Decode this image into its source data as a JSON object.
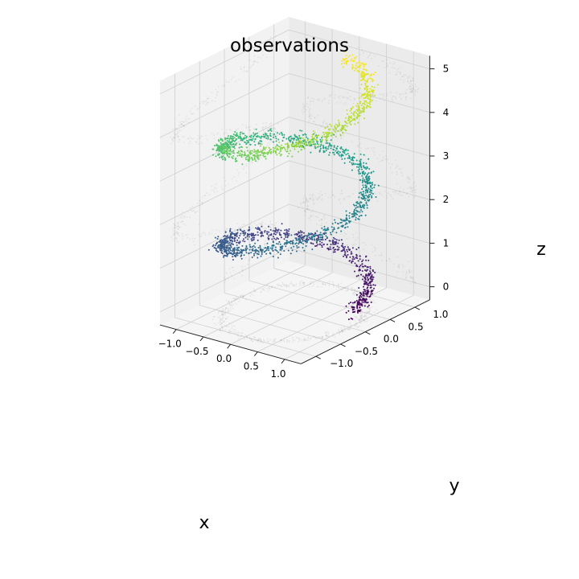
{
  "chart_data": {
    "type": "scatter",
    "projection": "3d",
    "title": "observations",
    "xlabel": "x",
    "ylabel": "y",
    "zlabel": "z",
    "xlim": [
      -1.3,
      1.3
    ],
    "ylim": [
      -1.3,
      1.3
    ],
    "zlim": [
      -0.3,
      5.3
    ],
    "x_ticks": [
      -1.0,
      -0.5,
      0.0,
      0.5,
      1.0
    ],
    "x_tick_labels": [
      "−1.0",
      "−0.5",
      "0.0",
      "0.5",
      "1.0"
    ],
    "y_ticks": [
      -1.0,
      -0.5,
      0.0,
      0.5,
      1.0
    ],
    "y_tick_labels": [
      "−1.0",
      "−0.5",
      "0.0",
      "0.5",
      "1.0"
    ],
    "z_ticks": [
      0,
      1,
      2,
      3,
      4,
      5
    ],
    "z_tick_labels": [
      "0",
      "1",
      "2",
      "3",
      "4",
      "5"
    ],
    "grid": true,
    "colormap": "viridis",
    "series": [
      {
        "points_shown": 2400,
        "color_by": "z",
        "curve": {
          "form": "helix",
          "radius": 1.0,
          "turns": 2.25,
          "z_range": [
            0,
            5
          ],
          "t_range_rad": [
            0,
            14.14
          ]
        },
        "noise_sd": 0.05
      },
      {
        "points_shown": 1600,
        "color": "#777777",
        "opacity": 0.12,
        "curve": {
          "form": "helix",
          "radius": 1.0,
          "turns": 2.25,
          "z_range": [
            0,
            5
          ],
          "t_range_rad": [
            0,
            14.14
          ]
        },
        "noise_sd": 0.05
      }
    ],
    "colors": {
      "pane_left": "#f2f2f2",
      "pane_right": "#ebebeb",
      "pane_floor": "#f5f5f5",
      "gridline": "#d0d0d0"
    }
  }
}
